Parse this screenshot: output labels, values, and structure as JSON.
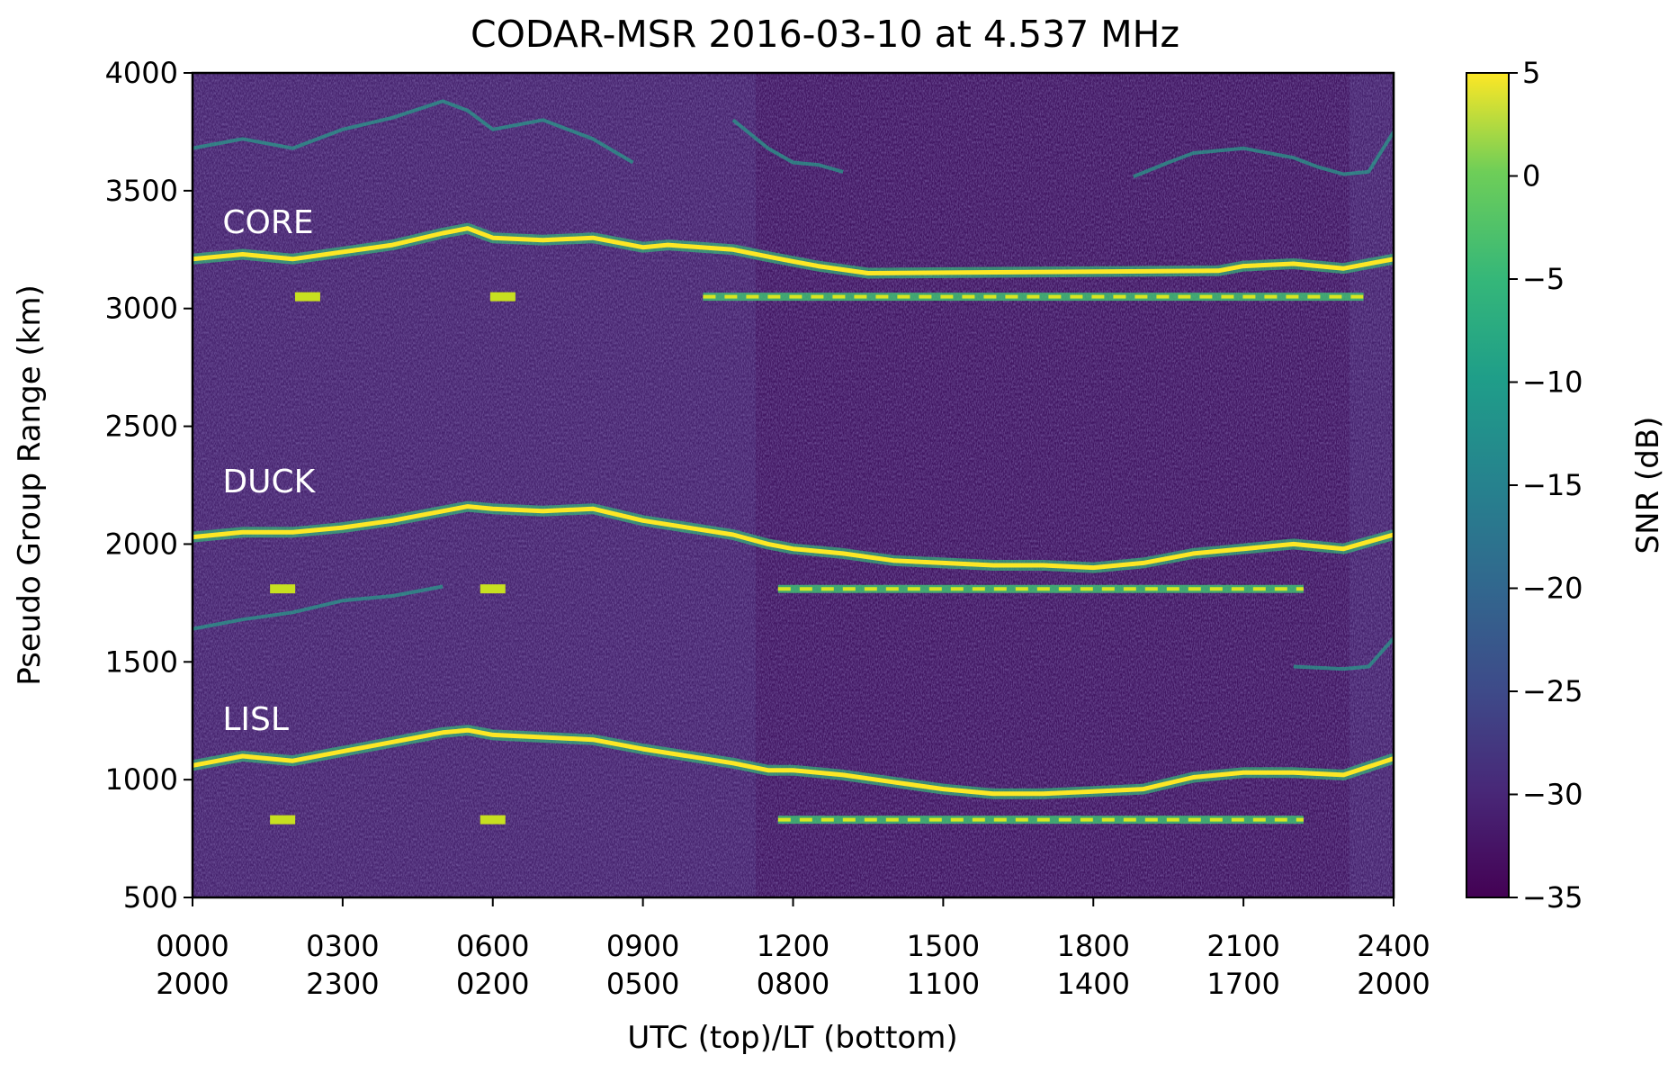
{
  "chart_data": {
    "type": "heatmap",
    "title": "CODAR-MSR 2016-03-10 at 4.537 MHz",
    "xlabel": "UTC (top)/LT (bottom)",
    "ylabel": "Pseudo Group Range (km)",
    "xlim": [
      0,
      24
    ],
    "ylim": [
      500,
      4000
    ],
    "x_tick_values": [
      0,
      3,
      6,
      9,
      12,
      15,
      18,
      21,
      24
    ],
    "x_tick_labels_utc": [
      "0000",
      "0300",
      "0600",
      "0900",
      "1200",
      "1500",
      "1800",
      "2100",
      "2400"
    ],
    "x_tick_labels_lt": [
      "2000",
      "2300",
      "0200",
      "0500",
      "0800",
      "1100",
      "1400",
      "1700",
      "2000"
    ],
    "y_ticks": [
      500,
      1000,
      1500,
      2000,
      2500,
      3000,
      3500,
      4000
    ],
    "colorbar": {
      "label": "SNR (dB)",
      "colormap": "viridis",
      "range": [
        -35,
        5
      ],
      "ticks": [
        5,
        0,
        -5,
        -10,
        -15,
        -20,
        -25,
        -30,
        -35
      ],
      "tick_labels": [
        "5",
        "0",
        "−5",
        "−10",
        "−15",
        "−20",
        "−25",
        "−30",
        "−35"
      ]
    },
    "annotations": [
      {
        "text": "CORE",
        "x": 0.6,
        "y": 3320
      },
      {
        "text": "DUCK",
        "x": 0.6,
        "y": 2220
      },
      {
        "text": "LISL",
        "x": 0.6,
        "y": 1210
      }
    ],
    "series": [
      {
        "name": "CORE",
        "x": [
          0,
          1,
          2,
          3,
          4,
          5,
          5.5,
          6,
          7,
          8,
          9,
          9.5,
          10.8,
          11.5,
          12,
          12.5,
          13.5,
          20.5,
          21,
          22,
          23,
          24
        ],
        "y": [
          3210,
          3230,
          3210,
          3240,
          3270,
          3320,
          3340,
          3300,
          3290,
          3300,
          3260,
          3270,
          3250,
          3220,
          3200,
          3180,
          3150,
          3160,
          3180,
          3190,
          3170,
          3210
        ]
      },
      {
        "name": "DUCK",
        "x": [
          0,
          1,
          2,
          3,
          4,
          5,
          5.5,
          6,
          7,
          8,
          9,
          10.8,
          11.5,
          12,
          13,
          14,
          15,
          16,
          17,
          18,
          19,
          20,
          21,
          22,
          23,
          24
        ],
        "y": [
          2030,
          2050,
          2050,
          2070,
          2100,
          2140,
          2160,
          2150,
          2140,
          2150,
          2100,
          2040,
          2000,
          1980,
          1960,
          1930,
          1920,
          1910,
          1910,
          1900,
          1920,
          1960,
          1980,
          2000,
          1980,
          2040
        ]
      },
      {
        "name": "LISL",
        "x": [
          0,
          1,
          2,
          3,
          4,
          5,
          5.5,
          6,
          7,
          8,
          9,
          10.8,
          11.5,
          12,
          13,
          14,
          15,
          16,
          17,
          18,
          19,
          20,
          21,
          22,
          23,
          24
        ],
        "y": [
          1060,
          1100,
          1080,
          1120,
          1160,
          1200,
          1210,
          1190,
          1180,
          1170,
          1130,
          1070,
          1040,
          1040,
          1020,
          990,
          960,
          940,
          940,
          950,
          960,
          1010,
          1030,
          1030,
          1020,
          1090
        ]
      },
      {
        "name": "",
        "x": [
          10.2,
          23.4
        ],
        "y": [
          3050,
          3050
        ],
        "kind": "flat"
      },
      {
        "name": "",
        "x": [
          11.7,
          22.2
        ],
        "y": [
          1810,
          1810
        ],
        "kind": "flat"
      },
      {
        "name": "",
        "x": [
          11.7,
          22.2
        ],
        "y": [
          830,
          830
        ],
        "kind": "flat"
      },
      {
        "name": "",
        "x": [
          0,
          1,
          2,
          3,
          4,
          5,
          5.5,
          6,
          7,
          8,
          8.8
        ],
        "y": [
          3680,
          3720,
          3680,
          3760,
          3810,
          3880,
          3840,
          3760,
          3800,
          3720,
          3620
        ],
        "kind": "faint"
      },
      {
        "name": "",
        "x": [
          10.8,
          11.5,
          12,
          12.5,
          13
        ],
        "y": [
          3800,
          3680,
          3620,
          3610,
          3580
        ],
        "kind": "faint"
      },
      {
        "name": "",
        "x": [
          18.8,
          19.5,
          20,
          21,
          22,
          22.5,
          23,
          23.5,
          24
        ],
        "y": [
          3560,
          3620,
          3660,
          3680,
          3640,
          3600,
          3570,
          3580,
          3750
        ],
        "kind": "faint"
      },
      {
        "name": "",
        "x": [
          0,
          1,
          2,
          3,
          4,
          5
        ],
        "y": [
          1640,
          1680,
          1710,
          1760,
          1780,
          1820
        ],
        "kind": "faint"
      },
      {
        "name": "",
        "x": [
          22,
          23,
          23.5,
          24
        ],
        "y": [
          1480,
          1470,
          1480,
          1600
        ],
        "kind": "faint"
      }
    ],
    "spots": [
      {
        "x": 2.3,
        "y": 3050
      },
      {
        "x": 6.2,
        "y": 3050
      },
      {
        "x": 6.0,
        "y": 1810
      },
      {
        "x": 1.8,
        "y": 1810
      },
      {
        "x": 6.0,
        "y": 830
      },
      {
        "x": 1.8,
        "y": 830
      }
    ]
  }
}
